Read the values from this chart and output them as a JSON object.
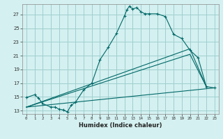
{
  "xlabel": "Humidex (Indice chaleur)",
  "bg_color": "#d4f0f0",
  "grid_color": "#a0cece",
  "line_color": "#006868",
  "xlim": [
    -0.5,
    23.5
  ],
  "ylim": [
    12.5,
    28.5
  ],
  "xticks": [
    0,
    1,
    2,
    3,
    4,
    5,
    6,
    7,
    8,
    9,
    10,
    11,
    12,
    13,
    14,
    15,
    16,
    17,
    18,
    19,
    20,
    21,
    22,
    23
  ],
  "yticks": [
    13,
    15,
    17,
    19,
    21,
    23,
    25,
    27
  ],
  "series": [
    [
      0,
      14.9
    ],
    [
      1,
      15.3
    ],
    [
      1.5,
      14.8
    ],
    [
      2,
      14.0
    ],
    [
      3,
      13.5
    ],
    [
      3.5,
      13.5
    ],
    [
      4,
      13.2
    ],
    [
      4.5,
      13.1
    ],
    [
      5,
      12.8
    ],
    [
      5.5,
      13.8
    ],
    [
      6,
      14.2
    ],
    [
      7,
      16.0
    ],
    [
      8,
      17.0
    ],
    [
      9,
      20.4
    ],
    [
      10,
      22.2
    ],
    [
      11,
      24.2
    ],
    [
      12,
      26.8
    ],
    [
      12.3,
      27.7
    ],
    [
      12.6,
      28.2
    ],
    [
      13,
      27.8
    ],
    [
      13.5,
      28.0
    ],
    [
      14,
      27.4
    ],
    [
      14.5,
      27.1
    ],
    [
      15,
      27.1
    ],
    [
      16,
      27.1
    ],
    [
      17,
      26.7
    ],
    [
      18,
      24.1
    ],
    [
      19,
      23.5
    ],
    [
      20,
      21.8
    ],
    [
      21,
      20.7
    ],
    [
      22,
      16.5
    ],
    [
      23,
      16.3
    ]
  ],
  "line2": [
    [
      0,
      13.5
    ],
    [
      20,
      22.0
    ],
    [
      22,
      16.5
    ]
  ],
  "line3": [
    [
      0,
      13.5
    ],
    [
      20,
      21.2
    ],
    [
      22,
      16.5
    ]
  ],
  "line4": [
    [
      0,
      13.5
    ],
    [
      23,
      16.3
    ]
  ]
}
